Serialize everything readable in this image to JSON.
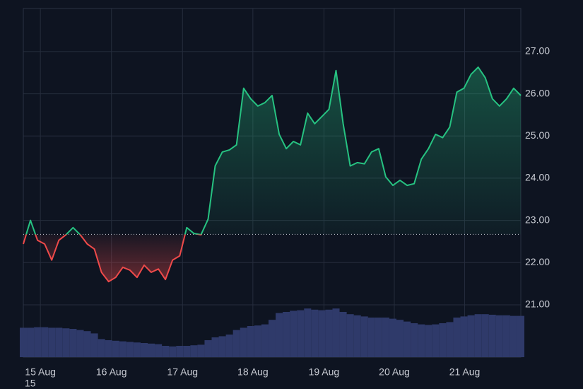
{
  "chart_data": {
    "type": "baseline",
    "baseline": 22.67,
    "up_color": "#26c281",
    "down_color": "#ef4a4a",
    "values": [
      22.44,
      23.0,
      22.53,
      22.44,
      22.06,
      22.53,
      22.66,
      22.83,
      22.66,
      22.44,
      22.32,
      21.77,
      21.55,
      21.65,
      21.89,
      21.82,
      21.65,
      21.94,
      21.77,
      21.85,
      21.6,
      22.06,
      22.16,
      22.83,
      22.69,
      22.66,
      23.03,
      24.29,
      24.62,
      24.67,
      24.79,
      26.13,
      25.88,
      25.71,
      25.79,
      25.96,
      25.04,
      24.7,
      24.87,
      24.79,
      25.54,
      25.29,
      25.46,
      25.63,
      26.55,
      25.29,
      24.29,
      24.37,
      24.34,
      24.62,
      24.7,
      24.03,
      23.83,
      23.95,
      23.83,
      23.87,
      24.45,
      24.7,
      25.04,
      24.96,
      25.21,
      26.04,
      26.13,
      26.46,
      26.63,
      26.38,
      25.88,
      25.71,
      25.88,
      26.13,
      25.96
    ],
    "volume": {
      "axis": "y2",
      "color": "#2f3a6a",
      "values": [
        52,
        52,
        53,
        53,
        52,
        52,
        51,
        50,
        48,
        46,
        42,
        32,
        30,
        29,
        28,
        27,
        26,
        25,
        24,
        23,
        20,
        19,
        20,
        20,
        21,
        22,
        30,
        35,
        37,
        40,
        48,
        52,
        55,
        56,
        58,
        66,
        78,
        80,
        82,
        83,
        86,
        84,
        83,
        84,
        86,
        80,
        76,
        74,
        72,
        70,
        70,
        70,
        68,
        66,
        63,
        60,
        58,
        57,
        58,
        60,
        62,
        70,
        72,
        74,
        76,
        76,
        75,
        74,
        74,
        73,
        73
      ]
    },
    "xlim": [
      0,
      70
    ],
    "xticks": [
      {
        "value": 2.4,
        "label": "15 Aug"
      },
      {
        "value": 12.4,
        "label": "16 Aug"
      },
      {
        "value": 22.4,
        "label": "17 Aug"
      },
      {
        "value": 32.3,
        "label": "18 Aug"
      },
      {
        "value": 42.3,
        "label": "19 Aug"
      },
      {
        "value": 52.2,
        "label": "20 Aug"
      },
      {
        "value": 62.1,
        "label": "21 Aug"
      }
    ],
    "cut_off_label": "15",
    "ylim": [
      19.76,
      28.02
    ],
    "yticks": [
      {
        "value": 21,
        "label": "21.00"
      },
      {
        "value": 22,
        "label": "22.00"
      },
      {
        "value": 23,
        "label": "23.00"
      },
      {
        "value": 24,
        "label": "24.00"
      },
      {
        "value": 25,
        "label": "25.00"
      },
      {
        "value": 26,
        "label": "26.00"
      },
      {
        "value": 27,
        "label": "27.00"
      }
    ],
    "y2lim": [
      0,
      100
    ],
    "grid": true
  }
}
